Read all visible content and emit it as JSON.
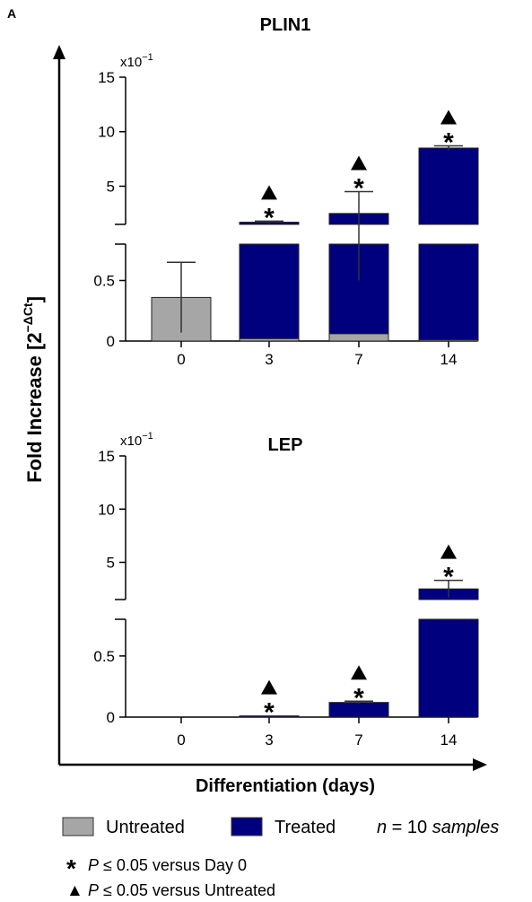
{
  "panel_label": "A",
  "y_axis_title": "Fold Increase [2",
  "y_axis_title_sup": "−ΔCt",
  "y_axis_title_end": "]",
  "x_axis_title": "Differentiation (days)",
  "colors": {
    "untreated": "#a6a6a6",
    "treated": "#00007f",
    "axis": "#000000"
  },
  "legend": {
    "untreated": "Untreated",
    "treated": "Treated",
    "n_note_prefix": "n",
    "n_note_eq": " = 10 ",
    "n_note_suffix": "samples",
    "star_symbol": "*",
    "star_p": "P",
    "star_note": " ≤ 0.05 versus Day 0",
    "triangle_symbol": "▲",
    "triangle_p": "P",
    "triangle_note": " ≤ 0.05 versus Untreated"
  },
  "chart_data": [
    {
      "type": "bar",
      "title": "PLIN1",
      "scale_note": "x10",
      "scale_note_sup": "−1",
      "categories": [
        "0",
        "3",
        "7",
        "14"
      ],
      "y_lower_ticks": [
        "0",
        "0.5"
      ],
      "y_upper_ticks": [
        "5",
        "10",
        "15"
      ],
      "lower_range": [
        0,
        0.8
      ],
      "upper_range": [
        1.5,
        15
      ],
      "series": [
        {
          "name": "Untreated",
          "values": [
            0.36,
            0.02,
            0.06,
            0.01
          ],
          "errors": [
            0.29,
            0,
            0,
            0
          ]
        },
        {
          "name": "Treated",
          "values": [
            null,
            1.7,
            2.5,
            8.5
          ],
          "errors": [
            null,
            0.1,
            2.0,
            0.2
          ]
        }
      ],
      "significance": {
        "star": [
          false,
          true,
          true,
          true
        ],
        "triangle": [
          false,
          true,
          true,
          true
        ]
      }
    },
    {
      "type": "bar",
      "title": "LEP",
      "scale_note": "x10",
      "scale_note_sup": "−1",
      "categories": [
        "0",
        "3",
        "7",
        "14"
      ],
      "y_lower_ticks": [
        "0",
        "0.5"
      ],
      "y_upper_ticks": [
        "5",
        "10",
        "15"
      ],
      "lower_range": [
        0,
        0.8
      ],
      "upper_range": [
        1.5,
        15
      ],
      "series": [
        {
          "name": "Untreated",
          "values": [
            0,
            0,
            0,
            0
          ],
          "errors": [
            0,
            0,
            0,
            0
          ]
        },
        {
          "name": "Treated",
          "values": [
            null,
            0.01,
            0.12,
            2.5
          ],
          "errors": [
            null,
            0,
            0.01,
            0.8
          ]
        }
      ],
      "significance": {
        "star": [
          false,
          true,
          true,
          true
        ],
        "triangle": [
          false,
          true,
          true,
          true
        ]
      }
    }
  ]
}
